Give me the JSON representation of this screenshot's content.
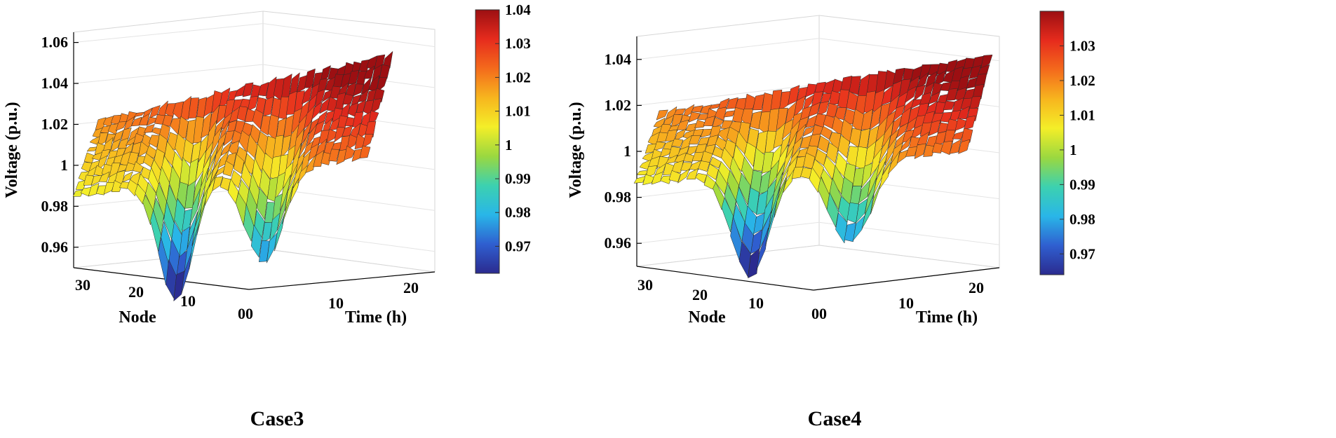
{
  "figure": {
    "colors": [
      "#2b2b8f",
      "#2f5fd0",
      "#29b6e8",
      "#3cd1b0",
      "#9ad840",
      "#f4ee28",
      "#f7b51e",
      "#f46a1c",
      "#e62b1d",
      "#9c0f12"
    ]
  },
  "chart_data": [
    {
      "type": "surface3d",
      "caption": "Case3",
      "zlabel": "Voltage (p.u.)",
      "xlabel": "Node",
      "ylabel": "Time (h)",
      "zlim": [
        0.95,
        1.065
      ],
      "zticks": [
        0.96,
        0.98,
        1,
        1.02,
        1.04,
        1.06
      ],
      "ztick_labels": [
        "0.96",
        "0.98",
        "1",
        "1.02",
        "1.04",
        "1.06"
      ],
      "node_ticks": [
        30,
        20,
        10
      ],
      "node_tick_labels": [
        "30",
        "20",
        "10"
      ],
      "time_ticks": [
        10,
        20
      ],
      "time_tick_labels": [
        "10",
        "20"
      ],
      "origin_label": "00",
      "colorbar": {
        "clim": [
          0.962,
          1.04
        ],
        "ticks": [
          0.97,
          0.98,
          0.99,
          1,
          1.01,
          1.02,
          1.03,
          1.04
        ],
        "tick_labels": [
          "0.97",
          "0.98",
          "0.99",
          "1",
          "1.01",
          "1.02",
          "1.03",
          "1.04"
        ]
      },
      "grid": true,
      "voltage_range_pu": [
        0.968,
        1.04
      ]
    },
    {
      "type": "surface3d",
      "caption": "Case4",
      "zlabel": "Voltage (p.u.)",
      "xlabel": "Node",
      "ylabel": "Time (h)",
      "zlim": [
        0.95,
        1.05
      ],
      "zticks": [
        0.96,
        0.98,
        1,
        1.02,
        1.04
      ],
      "ztick_labels": [
        "0.96",
        "0.98",
        "1",
        "1.02",
        "1.04"
      ],
      "node_ticks": [
        30,
        20,
        10
      ],
      "node_tick_labels": [
        "30",
        "20",
        "10"
      ],
      "time_ticks": [
        10,
        20
      ],
      "time_tick_labels": [
        "10",
        "20"
      ],
      "origin_label": "00",
      "colorbar": {
        "clim": [
          0.964,
          1.04
        ],
        "ticks": [
          0.97,
          0.98,
          0.99,
          1,
          1.01,
          1.02,
          1.03
        ],
        "tick_labels": [
          "0.97",
          "0.98",
          "0.99",
          "1",
          "1.01",
          "1.02",
          "1.03"
        ]
      },
      "grid": true,
      "voltage_range_pu": [
        0.974,
        1.04
      ]
    }
  ]
}
